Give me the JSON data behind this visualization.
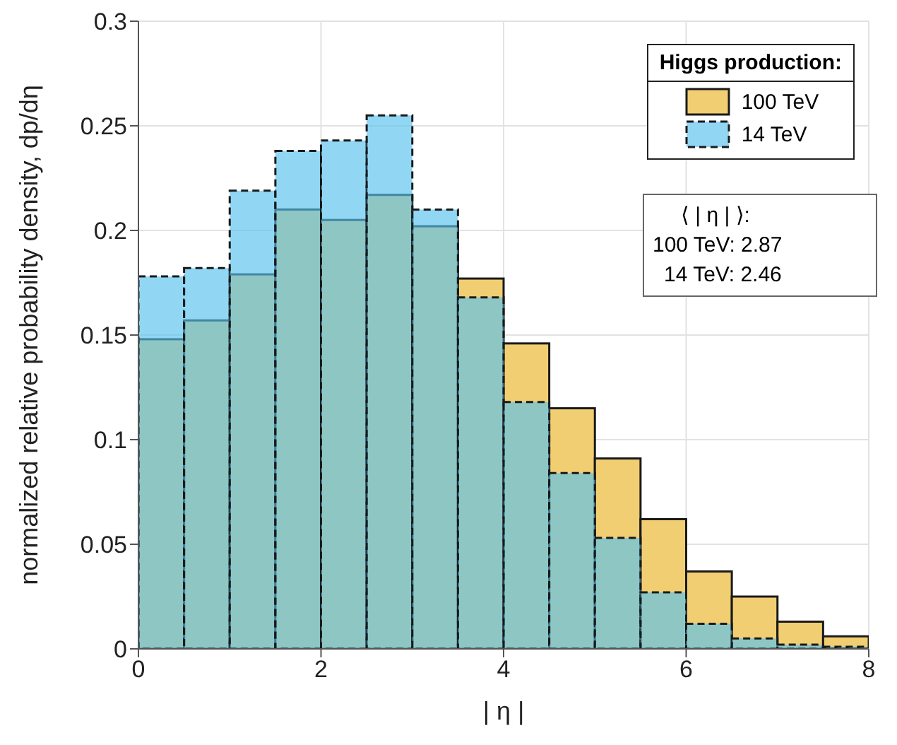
{
  "chart_data": {
    "type": "histogram",
    "xlabel": "| η |",
    "ylabel": "normalized relative probability density, dp/dη",
    "legend_title": "Higgs production:",
    "bins": [
      0,
      0.5,
      1,
      1.5,
      2,
      2.5,
      3,
      3.5,
      4,
      4.5,
      5,
      5.5,
      6,
      6.5,
      7,
      7.5,
      8
    ],
    "series": [
      {
        "name": "100 TeV",
        "color": "#f2ce72",
        "line_style": "solid",
        "values": [
          0.148,
          0.157,
          0.179,
          0.21,
          0.205,
          0.217,
          0.202,
          0.177,
          0.146,
          0.115,
          0.091,
          0.062,
          0.037,
          0.025,
          0.013,
          0.006
        ]
      },
      {
        "name": "14 TeV",
        "color": "#56c1ee",
        "line_style": "dashed",
        "values": [
          0.178,
          0.182,
          0.219,
          0.238,
          0.243,
          0.255,
          0.21,
          0.168,
          0.118,
          0.084,
          0.053,
          0.027,
          0.012,
          0.005,
          0.002,
          0.001
        ]
      }
    ],
    "xlim": [
      0,
      8
    ],
    "xticks": [
      0,
      2,
      4,
      6,
      8
    ],
    "ylim": [
      0,
      0.3
    ],
    "yticks": [
      0,
      0.05,
      0.1,
      0.15,
      0.2,
      0.25,
      0.3
    ],
    "grid": true,
    "legend": "top right",
    "annotations": [
      "⟨ | η | ⟩:",
      "100 TeV: 2.87",
      "14 TeV: 2.46"
    ]
  }
}
